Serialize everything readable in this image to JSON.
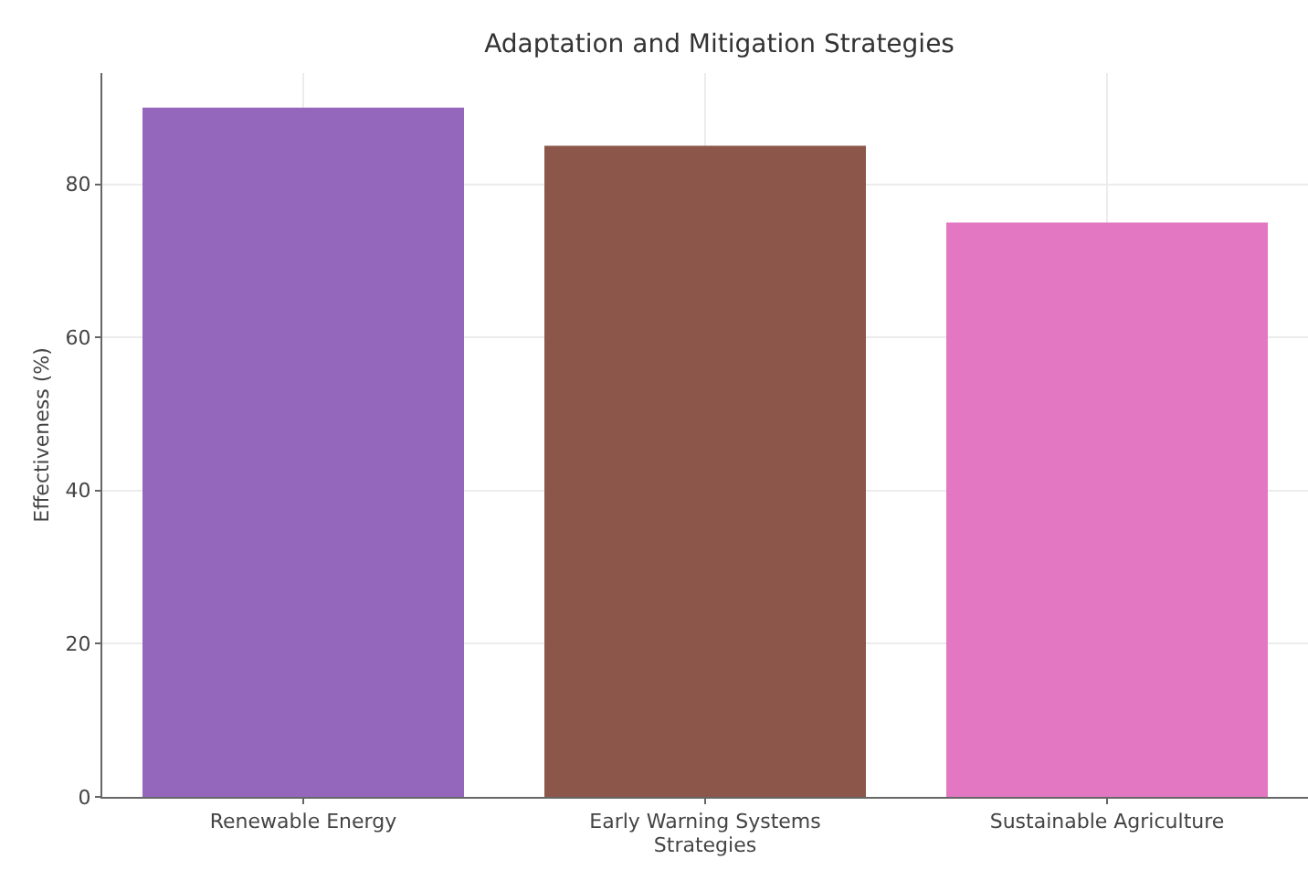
{
  "chart_data": {
    "type": "bar",
    "title": "Adaptation and Mitigation Strategies",
    "xlabel": "Strategies",
    "ylabel": "Effectiveness (%)",
    "categories": [
      "Renewable Energy",
      "Early Warning Systems",
      "Sustainable Agriculture"
    ],
    "values": [
      90,
      85,
      75
    ],
    "colors": [
      "#9467bd",
      "#8c564b",
      "#e377c2"
    ],
    "ylim": [
      0,
      94.5
    ],
    "yticks": [
      0,
      20,
      40,
      60,
      80
    ],
    "grid": true
  }
}
